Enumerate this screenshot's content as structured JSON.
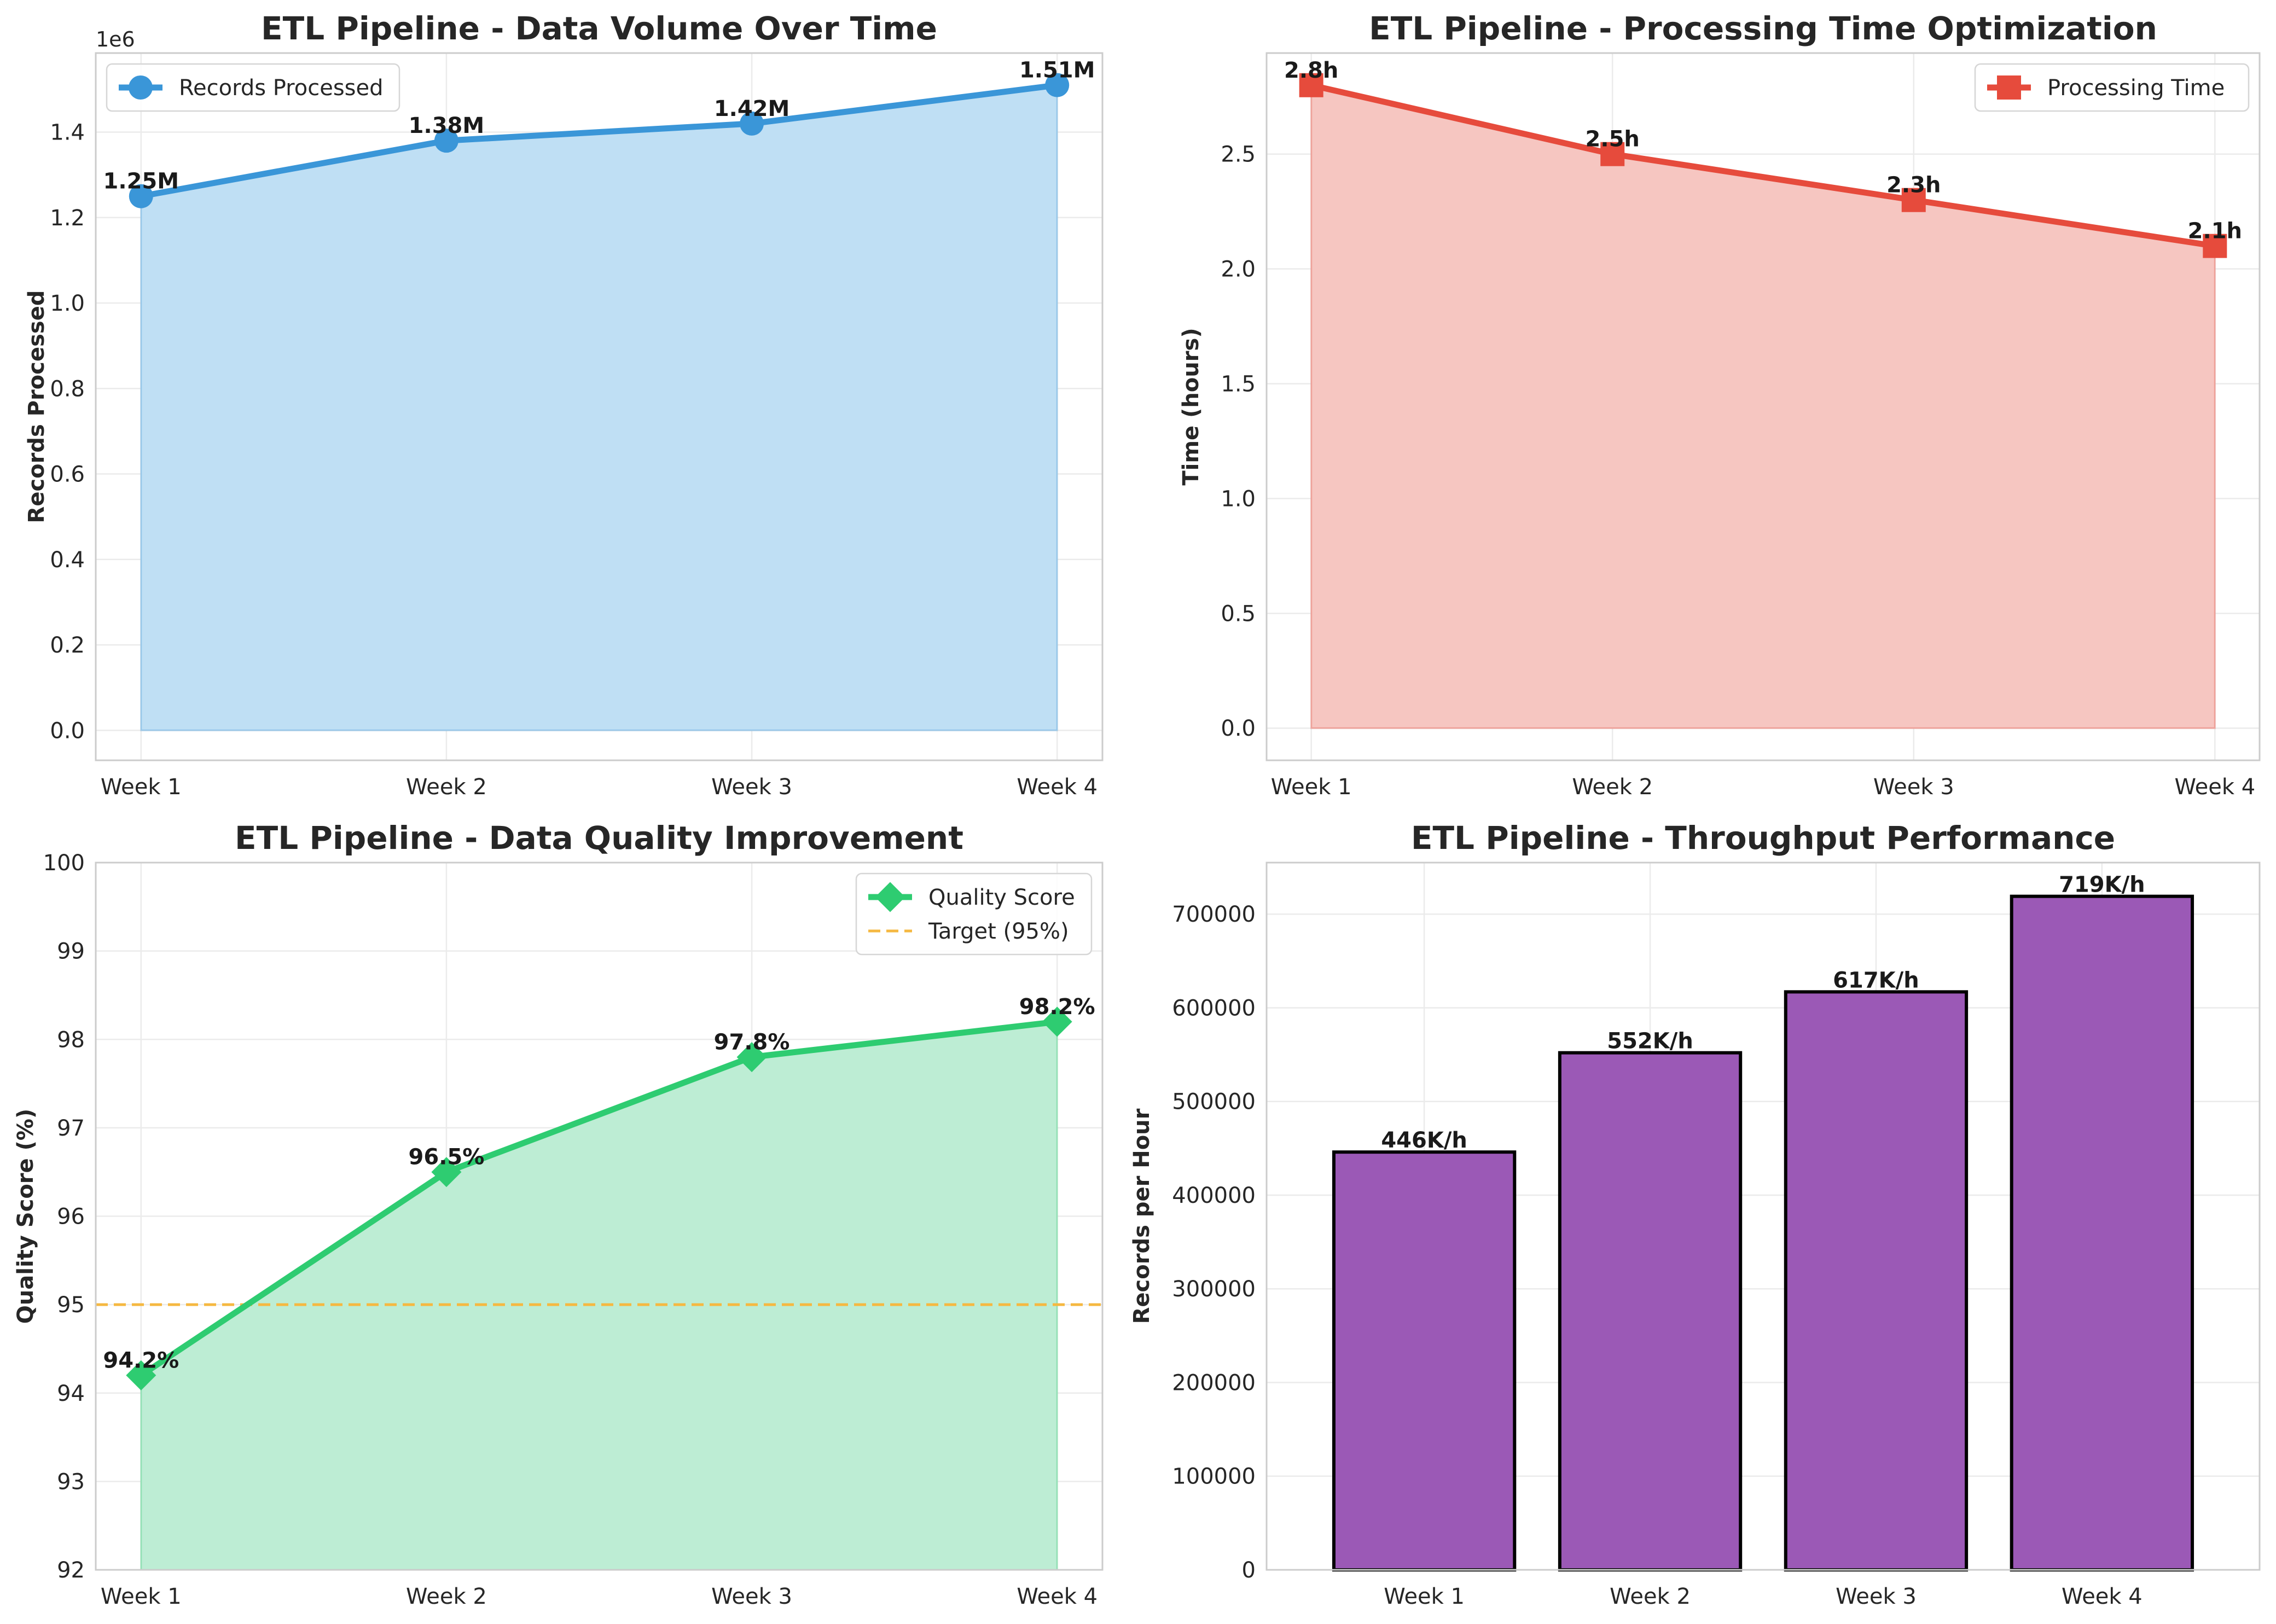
{
  "chart_data": [
    {
      "type": "area",
      "title": "ETL Pipeline - Data Volume Over Time",
      "ylabel": "Records Processed",
      "offset_label": "1e6",
      "categories": [
        "Week 1",
        "Week 2",
        "Week 3",
        "Week 4"
      ],
      "series": [
        {
          "name": "Records Processed",
          "values": [
            1250000,
            1380000,
            1420000,
            1510000
          ],
          "color": "#3a96d8",
          "fill": "#bfdff4",
          "marker": "circle"
        }
      ],
      "data_labels": [
        "1.25M",
        "1.38M",
        "1.42M",
        "1.51M"
      ],
      "ylim": [
        -70000,
        1585000
      ],
      "yticks": [
        0,
        200000,
        400000,
        600000,
        800000,
        1000000,
        1200000,
        1400000
      ],
      "ytick_labels": [
        "0.0",
        "0.2",
        "0.4",
        "0.6",
        "0.8",
        "1.0",
        "1.2",
        "1.4"
      ],
      "grid": true,
      "legend": "top-left"
    },
    {
      "type": "area",
      "title": "ETL Pipeline - Processing Time Optimization",
      "ylabel": "Time (hours)",
      "categories": [
        "Week 1",
        "Week 2",
        "Week 3",
        "Week 4"
      ],
      "series": [
        {
          "name": "Processing Time",
          "values": [
            2.8,
            2.5,
            2.3,
            2.1
          ],
          "color": "#e64b3c",
          "fill": "#f6c6c1",
          "marker": "square"
        }
      ],
      "data_labels": [
        "2.8h",
        "2.5h",
        "2.3h",
        "2.1h"
      ],
      "ylim": [
        -0.14,
        2.94
      ],
      "yticks": [
        0,
        0.5,
        1.0,
        1.5,
        2.0,
        2.5
      ],
      "ytick_labels": [
        "0.0",
        "0.5",
        "1.0",
        "1.5",
        "2.0",
        "2.5"
      ],
      "grid": true,
      "legend": "top-right"
    },
    {
      "type": "area",
      "title": "ETL Pipeline - Data Quality Improvement",
      "ylabel": "Quality Score (%)",
      "categories": [
        "Week 1",
        "Week 2",
        "Week 3",
        "Week 4"
      ],
      "series": [
        {
          "name": "Quality Score",
          "values": [
            94.2,
            96.5,
            97.8,
            98.2
          ],
          "color": "#2ecc71",
          "fill": "#bdedd4",
          "marker": "diamond"
        }
      ],
      "data_labels": [
        "94.2%",
        "96.5%",
        "97.8%",
        "98.2%"
      ],
      "reference_line": {
        "name": "Target (95%)",
        "value": 95,
        "color": "#f5b841"
      },
      "ylim": [
        92,
        100
      ],
      "yticks": [
        92,
        93,
        94,
        95,
        96,
        97,
        98,
        99,
        100
      ],
      "ytick_labels": [
        "92",
        "93",
        "94",
        "95",
        "96",
        "97",
        "98",
        "99",
        "100"
      ],
      "grid": true,
      "legend": "top-right"
    },
    {
      "type": "bar",
      "title": "ETL Pipeline - Throughput Performance",
      "ylabel": "Records per Hour",
      "categories": [
        "Week 1",
        "Week 2",
        "Week 3",
        "Week 4"
      ],
      "series": [
        {
          "values": [
            446000,
            552000,
            617000,
            719000
          ],
          "color": "#9b59b6"
        }
      ],
      "data_labels": [
        "446K/h",
        "552K/h",
        "617K/h",
        "719K/h"
      ],
      "ylim": [
        0,
        755000
      ],
      "yticks": [
        0,
        100000,
        200000,
        300000,
        400000,
        500000,
        600000,
        700000
      ],
      "ytick_labels": [
        "0",
        "100000",
        "200000",
        "300000",
        "400000",
        "500000",
        "600000",
        "700000"
      ],
      "grid": true
    }
  ]
}
